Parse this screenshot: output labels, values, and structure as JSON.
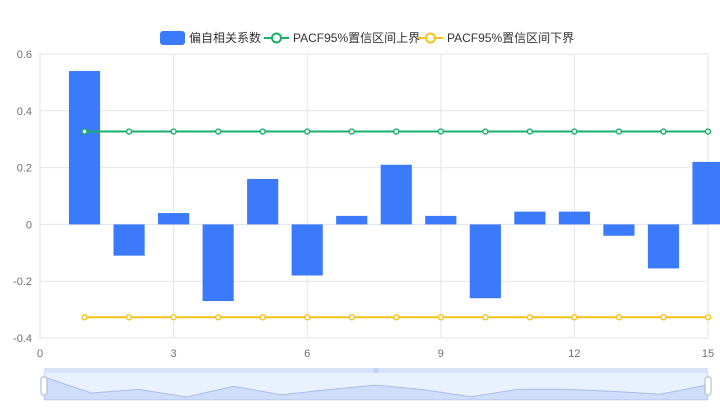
{
  "chart_data": {
    "type": "bar",
    "xlim": [
      0,
      15
    ],
    "ylim": [
      -0.4,
      0.6
    ],
    "x_ticks": [
      0,
      3,
      6,
      9,
      12,
      15
    ],
    "y_ticks": [
      -0.4,
      -0.2,
      0,
      0.2,
      0.4,
      0.6
    ],
    "x_tick_labels": [
      "0",
      "3",
      "6",
      "9",
      "12",
      "15"
    ],
    "y_tick_labels": [
      "-0.4",
      "-0.2",
      "0",
      "0.2",
      "0.4",
      "0.6"
    ],
    "grid": true,
    "legend_position": "top-center",
    "x": [
      1,
      2,
      3,
      4,
      5,
      6,
      7,
      8,
      9,
      10,
      11,
      12,
      13,
      14,
      15
    ],
    "series": [
      {
        "name": "偏自相关系数",
        "type": "bar",
        "color": "#3b7bfb",
        "values": [
          0.54,
          -0.11,
          0.04,
          -0.27,
          0.16,
          -0.18,
          0.03,
          0.21,
          0.03,
          -0.26,
          0.045,
          0.045,
          -0.04,
          -0.155,
          0.22
        ]
      },
      {
        "name": "PACF95%置信区间上界",
        "type": "line",
        "color": "#18b068",
        "values": [
          0.327,
          0.327,
          0.327,
          0.327,
          0.327,
          0.327,
          0.327,
          0.327,
          0.327,
          0.327,
          0.327,
          0.327,
          0.327,
          0.327,
          0.327
        ]
      },
      {
        "name": "PACF95%置信区间下界",
        "type": "line",
        "color": "#f5c21b",
        "values": [
          -0.327,
          -0.327,
          -0.327,
          -0.327,
          -0.327,
          -0.327,
          -0.327,
          -0.327,
          -0.327,
          -0.327,
          -0.327,
          -0.327,
          -0.327,
          -0.327,
          -0.327
        ]
      }
    ],
    "data_zoom": {
      "start": 0,
      "end": 1,
      "handle_label": "|||"
    }
  }
}
